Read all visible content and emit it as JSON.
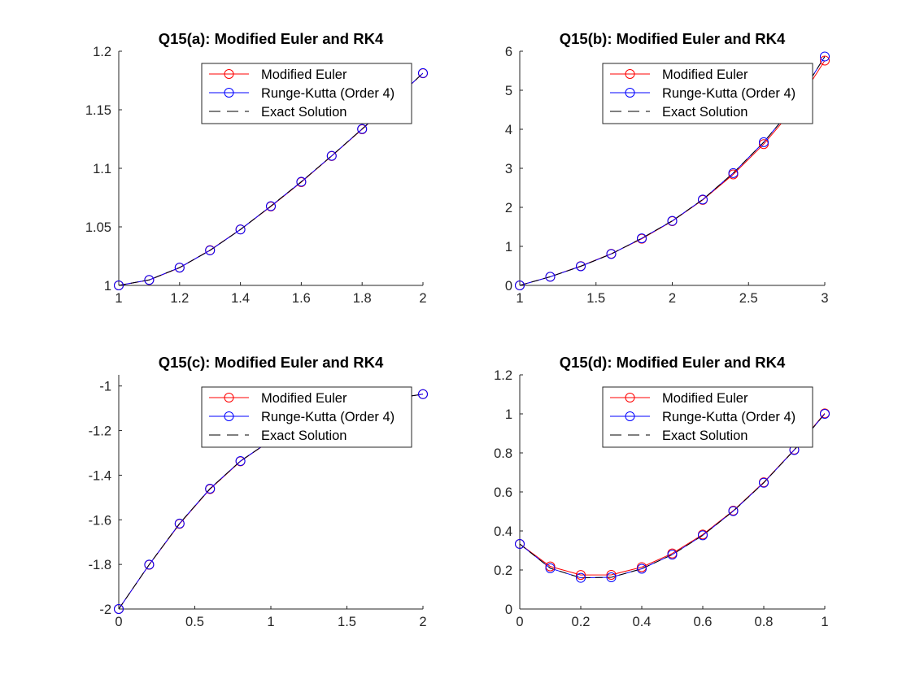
{
  "figure": {
    "background": "#ffffff"
  },
  "series_styles": [
    {
      "name": "Modified Euler",
      "color": "#ff0000",
      "line": "solid",
      "marker": "circle"
    },
    {
      "name": "Runge-Kutta (Order 4)",
      "color": "#0000ff",
      "line": "solid",
      "marker": "circle"
    },
    {
      "name": "Exact Solution",
      "color": "#000000",
      "line": "dashed",
      "marker": "none"
    }
  ],
  "chart_data": [
    {
      "type": "line",
      "title": "Q15(a): Modified Euler and RK4",
      "xlabel": "",
      "ylabel": "",
      "xlim": [
        1,
        2
      ],
      "ylim": [
        1,
        1.2
      ],
      "xticks": [
        1,
        1.2,
        1.4,
        1.6,
        1.8,
        2
      ],
      "xtick_labels": [
        "1",
        "1.2",
        "1.4",
        "1.6",
        "1.8",
        "2"
      ],
      "yticks": [
        1,
        1.05,
        1.1,
        1.15,
        1.2
      ],
      "ytick_labels": [
        "1",
        "1.05",
        "1.1",
        "1.15",
        "1.2"
      ],
      "grid": false,
      "legend_position": "top-right",
      "series": [
        {
          "name": "Modified Euler",
          "x": [
            1,
            1.1,
            1.2,
            1.3,
            1.4,
            1.5,
            1.6,
            1.7,
            1.8,
            1.9,
            2.0
          ],
          "y": [
            1.0,
            1.0046,
            1.0151,
            1.0301,
            1.0478,
            1.0674,
            1.0882,
            1.1105,
            1.1333,
            1.157,
            1.1812
          ]
        },
        {
          "name": "Runge-Kutta (Order 4)",
          "x": [
            1,
            1.1,
            1.2,
            1.3,
            1.4,
            1.5,
            1.6,
            1.7,
            1.8,
            1.9,
            2.0
          ],
          "y": [
            1.0,
            1.0047,
            1.0152,
            1.0299,
            1.0477,
            1.0677,
            1.0885,
            1.1107,
            1.1336,
            1.1572,
            1.1813
          ]
        },
        {
          "name": "Exact Solution",
          "x": [
            1,
            1.1,
            1.2,
            1.3,
            1.4,
            1.5,
            1.6,
            1.7,
            1.8,
            1.9,
            2.0
          ],
          "y": [
            1.0,
            1.0047,
            1.0152,
            1.0299,
            1.0477,
            1.0677,
            1.0885,
            1.1107,
            1.1336,
            1.1572,
            1.1813
          ]
        }
      ]
    },
    {
      "type": "line",
      "title": "Q15(b): Modified Euler and RK4",
      "xlabel": "",
      "ylabel": "",
      "xlim": [
        1,
        3
      ],
      "ylim": [
        0,
        6
      ],
      "xticks": [
        1,
        1.5,
        2,
        2.5,
        3
      ],
      "xtick_labels": [
        "1",
        "1.5",
        "2",
        "2.5",
        "3"
      ],
      "yticks": [
        0,
        1,
        2,
        3,
        4,
        5,
        6
      ],
      "ytick_labels": [
        "0",
        "1",
        "2",
        "3",
        "4",
        "5",
        "6"
      ],
      "grid": false,
      "legend_position": "top-right",
      "series": [
        {
          "name": "Modified Euler",
          "x": [
            1,
            1.2,
            1.4,
            1.6,
            1.8,
            2.0,
            2.2,
            2.4,
            2.6,
            2.8,
            3.0
          ],
          "y": [
            0.0,
            0.2226,
            0.4954,
            0.8103,
            1.1947,
            1.6463,
            2.1911,
            2.8433,
            3.6209,
            4.5393,
            5.7605
          ]
        },
        {
          "name": "Runge-Kutta (Order 4)",
          "x": [
            1,
            1.2,
            1.4,
            1.6,
            1.8,
            2.0,
            2.2,
            2.4,
            2.6,
            2.8,
            3.0
          ],
          "y": [
            0.0,
            0.2213,
            0.4894,
            0.8053,
            1.2063,
            1.6529,
            2.2004,
            2.8785,
            3.6693,
            4.6063,
            5.8653
          ]
        },
        {
          "name": "Exact Solution",
          "x": [
            1,
            1.2,
            1.4,
            1.6,
            1.8,
            2.0,
            2.2,
            2.4,
            2.6,
            2.8,
            3.0
          ],
          "y": [
            0.0,
            0.2213,
            0.4894,
            0.8053,
            1.2063,
            1.6529,
            2.2004,
            2.8785,
            3.6693,
            4.6063,
            5.8653
          ]
        }
      ]
    },
    {
      "type": "line",
      "title": "Q15(c): Modified Euler and RK4",
      "xlabel": "",
      "ylabel": "",
      "xlim": [
        0,
        2
      ],
      "ylim": [
        -2,
        -0.95
      ],
      "xticks": [
        0,
        0.5,
        1,
        1.5,
        2
      ],
      "xtick_labels": [
        "0",
        "0.5",
        "1",
        "1.5",
        "2"
      ],
      "yticks": [
        -2,
        -1.8,
        -1.6,
        -1.4,
        -1.2,
        -1
      ],
      "ytick_labels": [
        "-2",
        "-1.8",
        "-1.6",
        "-1.4",
        "-1.2",
        "-1"
      ],
      "grid": false,
      "legend_position": "top-right",
      "series": [
        {
          "name": "Modified Euler",
          "x": [
            0,
            0.2,
            0.4,
            0.6,
            0.8,
            1.0,
            1.2,
            1.4,
            1.6,
            1.8,
            2.0
          ],
          "y": [
            -2.0,
            -1.8017,
            -1.6182,
            -1.4622,
            -1.3377,
            -1.2442,
            -1.1678,
            -1.1144,
            -1.0826,
            -1.0581,
            -1.0366
          ]
        },
        {
          "name": "Runge-Kutta (Order 4)",
          "x": [
            0,
            0.2,
            0.4,
            0.6,
            0.8,
            1.0,
            1.2,
            1.4,
            1.6,
            1.8,
            2.0
          ],
          "y": [
            -2.0,
            -1.8008,
            -1.6166,
            -1.4605,
            -1.3366,
            -1.2438,
            -1.1673,
            -1.1138,
            -1.0821,
            -1.0578,
            -1.0364
          ]
        },
        {
          "name": "Exact Solution",
          "x": [
            0,
            0.2,
            0.4,
            0.6,
            0.8,
            1.0,
            1.2,
            1.4,
            1.6,
            1.8,
            2.0
          ],
          "y": [
            -2.0,
            -1.8008,
            -1.6166,
            -1.4605,
            -1.3366,
            -1.2438,
            -1.1673,
            -1.1138,
            -1.0821,
            -1.0578,
            -1.0364
          ]
        }
      ]
    },
    {
      "type": "line",
      "title": "Q15(d): Modified Euler and RK4",
      "xlabel": "",
      "ylabel": "",
      "xlim": [
        0,
        1
      ],
      "ylim": [
        0,
        1.2
      ],
      "xticks": [
        0,
        0.2,
        0.4,
        0.6,
        0.8,
        1
      ],
      "xtick_labels": [
        "0",
        "0.2",
        "0.4",
        "0.6",
        "0.8",
        "1"
      ],
      "yticks": [
        0,
        0.2,
        0.4,
        0.6,
        0.8,
        1,
        1.2
      ],
      "ytick_labels": [
        "0",
        "0.2",
        "0.4",
        "0.6",
        "0.8",
        "1",
        "1.2"
      ],
      "grid": false,
      "legend_position": "top-right",
      "series": [
        {
          "name": "Modified Euler",
          "x": [
            0,
            0.1,
            0.2,
            0.3,
            0.4,
            0.5,
            0.6,
            0.7,
            0.8,
            0.9,
            1.0
          ],
          "y": [
            0.3333,
            0.2182,
            0.1744,
            0.1751,
            0.2147,
            0.2847,
            0.3818,
            0.5039,
            0.6493,
            0.8165,
            1.0028
          ]
        },
        {
          "name": "Runge-Kutta (Order 4)",
          "x": [
            0,
            0.1,
            0.2,
            0.3,
            0.4,
            0.5,
            0.6,
            0.7,
            0.8,
            0.9,
            1.0
          ],
          "y": [
            0.3333,
            0.2091,
            0.1597,
            0.1623,
            0.2062,
            0.2787,
            0.3776,
            0.5016,
            0.6471,
            0.8147,
            1.0
          ]
        },
        {
          "name": "Exact Solution",
          "x": [
            0,
            0.1,
            0.2,
            0.3,
            0.4,
            0.5,
            0.6,
            0.7,
            0.8,
            0.9,
            1.0
          ],
          "y": [
            0.3333,
            0.2091,
            0.1597,
            0.1623,
            0.2062,
            0.2787,
            0.3776,
            0.5016,
            0.6471,
            0.8147,
            1.0
          ]
        }
      ]
    }
  ]
}
